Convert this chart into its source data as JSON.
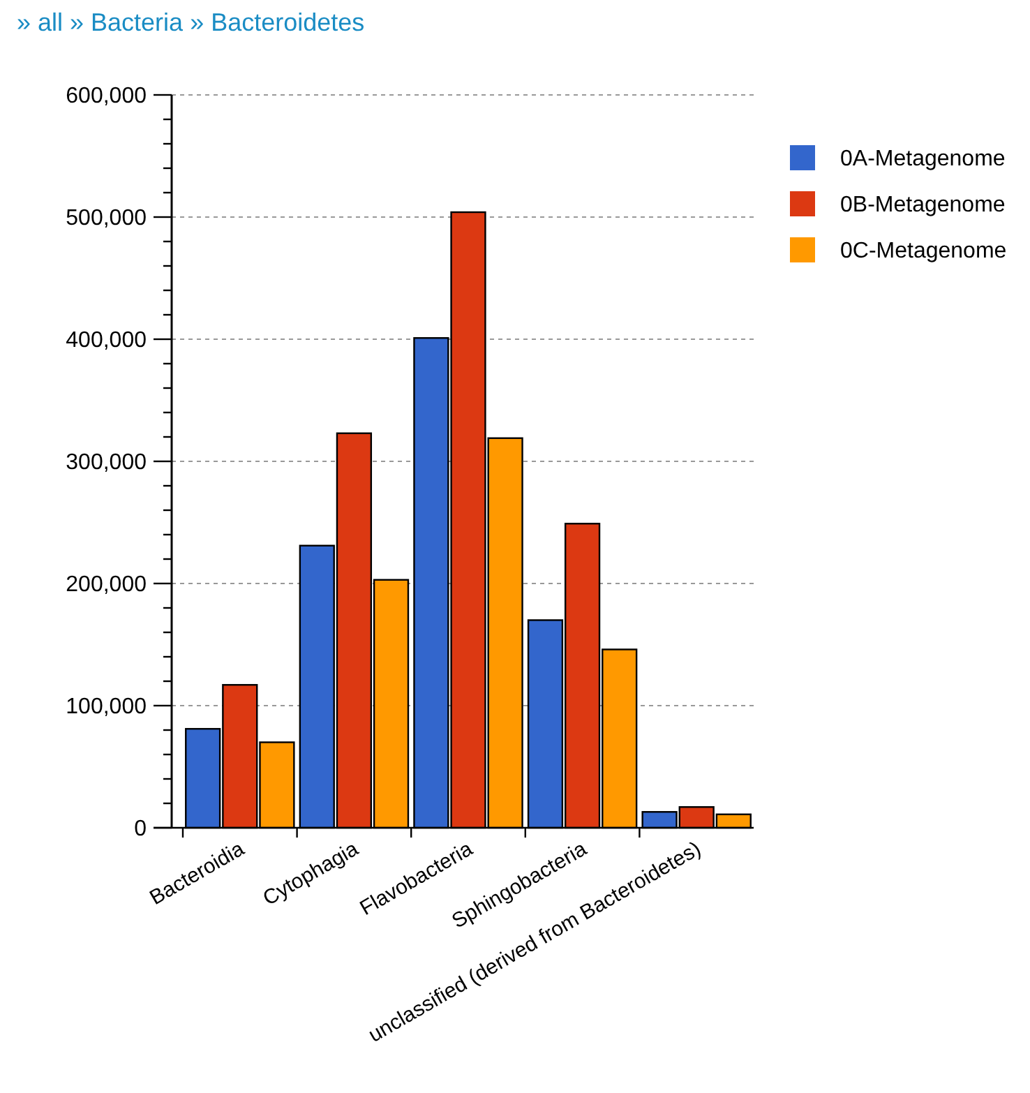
{
  "chart_data": {
    "type": "bar",
    "title": "» all » Bacteria » Bacteroidetes",
    "categories": [
      "Bacteroidia",
      "Cytophagia",
      "Flavobacteria",
      "Sphingobacteria",
      "unclassified (derived from Bacteroidetes)"
    ],
    "series": [
      {
        "name": "0A-Metagenome",
        "color": "#3366cc",
        "values": [
          81000,
          231000,
          401000,
          170000,
          13000
        ]
      },
      {
        "name": "0B-Metagenome",
        "color": "#dc3912",
        "values": [
          117000,
          323000,
          504000,
          249000,
          17000
        ]
      },
      {
        "name": "0C-Metagenome",
        "color": "#ff9900",
        "values": [
          70000,
          203000,
          319000,
          146000,
          11000
        ]
      }
    ],
    "ylim": [
      0,
      600000
    ],
    "yticks": [
      0,
      {
        "value": 20000,
        "label": null
      },
      {
        "value": 40000,
        "label": null
      },
      {
        "value": 60000,
        "label": null
      },
      {
        "value": 80000,
        "label": null
      },
      {
        "value": 100000,
        "label": "100,000"
      },
      {
        "value": 120000,
        "label": null
      },
      {
        "value": 140000,
        "label": null
      },
      {
        "value": 160000,
        "label": null
      },
      {
        "value": 180000,
        "label": null
      },
      {
        "value": 200000,
        "label": "200,000"
      },
      {
        "value": 220000,
        "label": null
      },
      {
        "value": 240000,
        "label": null
      },
      {
        "value": 260000,
        "label": null
      },
      {
        "value": 280000,
        "label": null
      },
      {
        "value": 300000,
        "label": "300,000"
      },
      {
        "value": 320000,
        "label": null
      },
      {
        "value": 340000,
        "label": null
      },
      {
        "value": 360000,
        "label": null
      },
      {
        "value": 380000,
        "label": null
      },
      {
        "value": 400000,
        "label": "400,000"
      },
      {
        "value": 420000,
        "label": null
      },
      {
        "value": 440000,
        "label": null
      },
      {
        "value": 460000,
        "label": null
      },
      {
        "value": 480000,
        "label": null
      },
      {
        "value": 500000,
        "label": "500,000"
      },
      {
        "value": 520000,
        "label": null
      },
      {
        "value": 540000,
        "label": null
      },
      {
        "value": 560000,
        "label": null
      },
      {
        "value": 580000,
        "label": null
      },
      {
        "value": 600000,
        "label": "600,000"
      }
    ],
    "grid": "y",
    "legend": "top right"
  }
}
